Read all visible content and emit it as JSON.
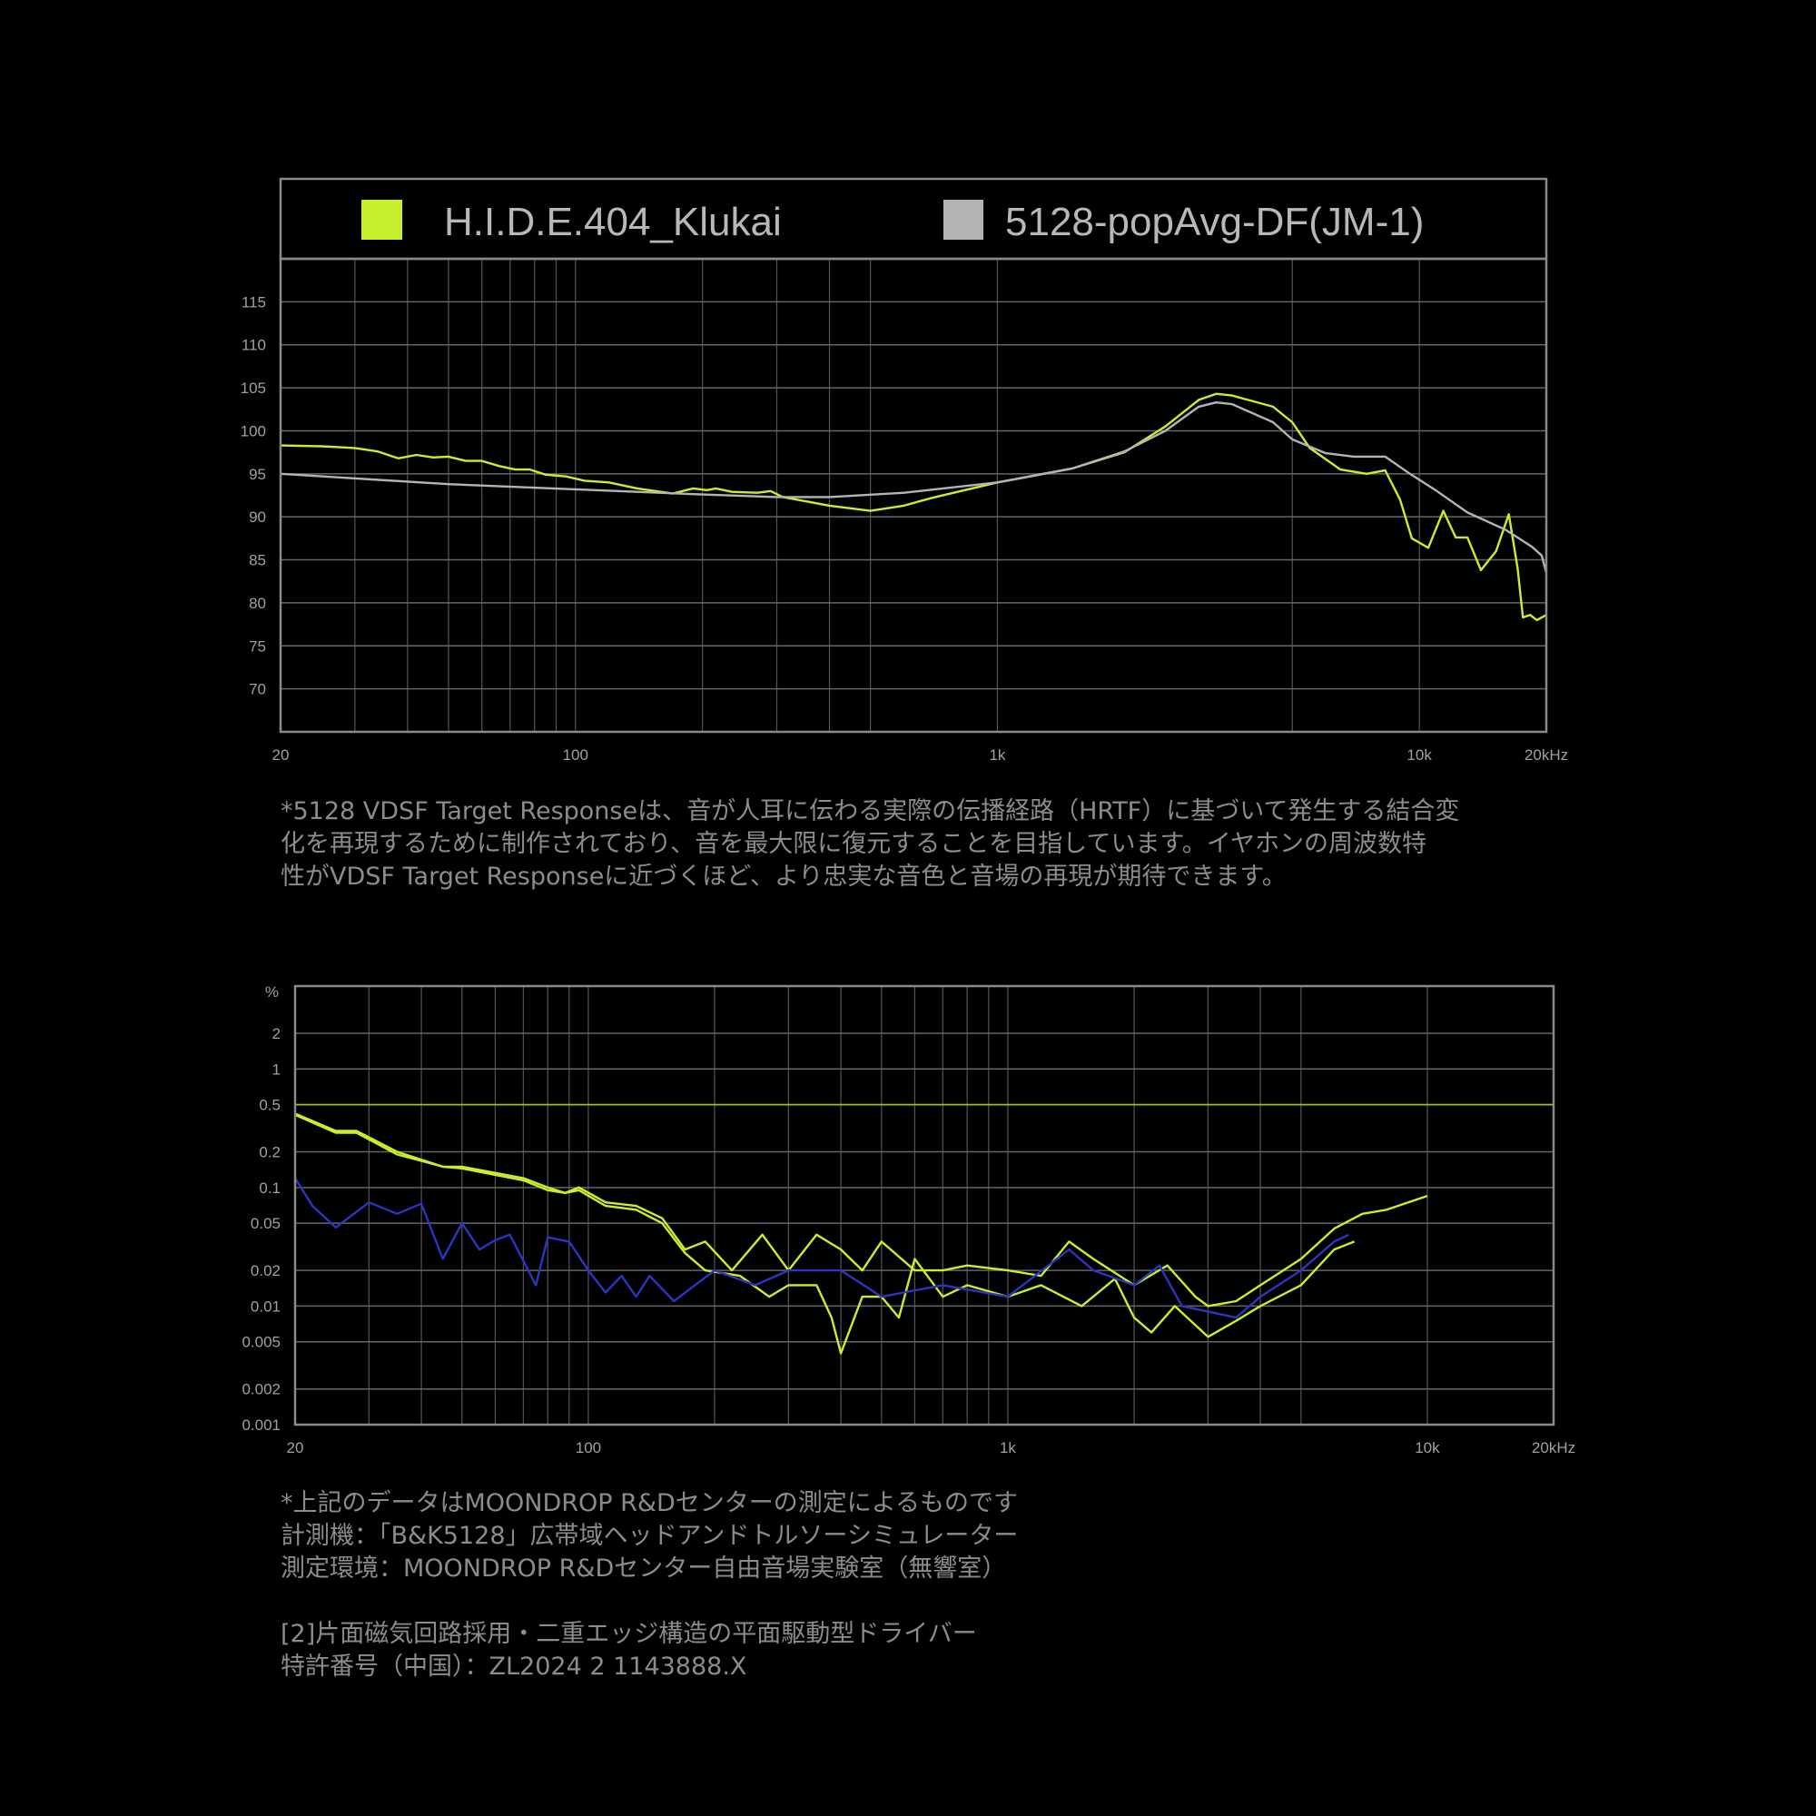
{
  "colors": {
    "background": "#000000",
    "klukai": "#c8ef2c",
    "target": "#b4b4b4",
    "blue": "#2a36c0",
    "grid": "#555555",
    "frame": "#8a8a8a",
    "tick": "#a0a0a0",
    "text": "#8c8c8c",
    "threshold": "#a8c21c"
  },
  "chart_data": [
    {
      "type": "line",
      "legend": {
        "placement": "top",
        "entries": [
          "H.I.D.E.404_Klukai",
          "5128-popAvg-DF(JM-1)"
        ]
      },
      "x_scale": "log",
      "xlim": [
        20,
        20000
      ],
      "ylim": [
        65,
        120
      ],
      "grid": true,
      "x_ticks": [
        {
          "v": 20,
          "label": "20"
        },
        {
          "v": 100,
          "label": "100"
        },
        {
          "v": 1000,
          "label": "1k"
        },
        {
          "v": 10000,
          "label": "10k"
        },
        {
          "v": 20000,
          "label": "20kHz"
        }
      ],
      "x_grid": [
        30,
        40,
        50,
        60,
        70,
        80,
        90,
        100,
        200,
        300,
        400,
        500,
        1000,
        5000,
        10000
      ],
      "y_ticks": [
        70,
        75,
        80,
        85,
        90,
        95,
        100,
        105,
        110,
        115
      ],
      "series": [
        {
          "name": "H.I.D.E.404_Klukai",
          "color": "#c8ef2c",
          "points": [
            [
              20,
              98.3
            ],
            [
              25,
              98.2
            ],
            [
              30,
              98
            ],
            [
              34,
              97.6
            ],
            [
              38,
              96.8
            ],
            [
              42,
              97.2
            ],
            [
              46,
              96.9
            ],
            [
              50,
              97
            ],
            [
              55,
              96.5
            ],
            [
              60,
              96.5
            ],
            [
              66,
              95.9
            ],
            [
              72,
              95.5
            ],
            [
              78,
              95.5
            ],
            [
              85,
              94.9
            ],
            [
              95,
              94.7
            ],
            [
              105,
              94.2
            ],
            [
              120,
              94
            ],
            [
              140,
              93.3
            ],
            [
              170,
              92.7
            ],
            [
              190,
              93.3
            ],
            [
              205,
              93.1
            ],
            [
              215,
              93.3
            ],
            [
              235,
              92.9
            ],
            [
              270,
              92.8
            ],
            [
              290,
              93
            ],
            [
              310,
              92.3
            ],
            [
              400,
              91.3
            ],
            [
              500,
              90.7
            ],
            [
              600,
              91.3
            ],
            [
              700,
              92.2
            ],
            [
              1000,
              94
            ],
            [
              1500,
              95.6
            ],
            [
              2000,
              97.5
            ],
            [
              2500,
              100.5
            ],
            [
              3000,
              103.6
            ],
            [
              3300,
              104.3
            ],
            [
              3600,
              104.1
            ],
            [
              4500,
              102.8
            ],
            [
              5000,
              101
            ],
            [
              5500,
              98
            ],
            [
              6500,
              95.5
            ],
            [
              7500,
              95
            ],
            [
              8300,
              95.4
            ],
            [
              9000,
              92
            ],
            [
              9600,
              87.5
            ],
            [
              10500,
              86.4
            ],
            [
              11400,
              90.7
            ],
            [
              12200,
              87.6
            ],
            [
              13000,
              87.6
            ],
            [
              14000,
              83.8
            ],
            [
              15200,
              86
            ],
            [
              16300,
              90.3
            ],
            [
              17100,
              84
            ],
            [
              17600,
              78.3
            ],
            [
              18300,
              78.6
            ],
            [
              19000,
              78
            ],
            [
              20000,
              78.6
            ]
          ]
        },
        {
          "name": "5128-popAvg-DF(JM-1)",
          "color": "#b4b4b4",
          "points": [
            [
              20,
              95
            ],
            [
              50,
              93.8
            ],
            [
              100,
              93.2
            ],
            [
              200,
              92.6
            ],
            [
              300,
              92.3
            ],
            [
              400,
              92.3
            ],
            [
              600,
              92.8
            ],
            [
              1000,
              94
            ],
            [
              1500,
              95.6
            ],
            [
              2000,
              97.6
            ],
            [
              2500,
              100
            ],
            [
              3000,
              102.8
            ],
            [
              3300,
              103.3
            ],
            [
              3600,
              103.1
            ],
            [
              4500,
              101
            ],
            [
              5000,
              99
            ],
            [
              6000,
              97.4
            ],
            [
              7000,
              97
            ],
            [
              8300,
              97
            ],
            [
              9500,
              95
            ],
            [
              11000,
              93
            ],
            [
              13000,
              90.5
            ],
            [
              16000,
              88.5
            ],
            [
              18500,
              86.5
            ],
            [
              19500,
              85.5
            ],
            [
              20000,
              83.5
            ]
          ]
        }
      ]
    },
    {
      "type": "line",
      "y_unit": "%",
      "x_scale": "log",
      "y_scale": "log",
      "xlim": [
        20,
        20000
      ],
      "ylim": [
        0.001,
        5
      ],
      "grid": true,
      "x_ticks": [
        {
          "v": 20,
          "label": "20"
        },
        {
          "v": 100,
          "label": "100"
        },
        {
          "v": 1000,
          "label": "1k"
        },
        {
          "v": 10000,
          "label": "10k"
        },
        {
          "v": 20000,
          "label": "20kHz"
        }
      ],
      "x_grid": [
        30,
        40,
        50,
        60,
        70,
        80,
        90,
        100,
        200,
        300,
        400,
        500,
        600,
        700,
        800,
        900,
        1000,
        2000,
        3000,
        4000,
        5000,
        10000
      ],
      "y_ticks": [
        {
          "v": 2,
          "label": "2"
        },
        {
          "v": 1,
          "label": "1"
        },
        {
          "v": 0.5,
          "label": "0.5"
        },
        {
          "v": 0.2,
          "label": "0.2"
        },
        {
          "v": 0.1,
          "label": "0.1"
        },
        {
          "v": 0.05,
          "label": "0.05"
        },
        {
          "v": 0.02,
          "label": "0.02"
        },
        {
          "v": 0.01,
          "label": "0.01"
        },
        {
          "v": 0.005,
          "label": "0.005"
        },
        {
          "v": 0.002,
          "label": "0.002"
        },
        {
          "v": 0.001,
          "label": "0.001"
        }
      ],
      "reference_line": {
        "value": 0.5,
        "color": "#a8c21c"
      },
      "series": [
        {
          "color": "#c8ef2c",
          "points": [
            [
              20,
              0.42
            ],
            [
              25,
              0.3
            ],
            [
              28,
              0.3
            ],
            [
              35,
              0.2
            ],
            [
              45,
              0.15
            ],
            [
              50,
              0.15
            ],
            [
              70,
              0.12
            ],
            [
              80,
              0.1
            ],
            [
              88,
              0.09
            ],
            [
              95,
              0.1
            ],
            [
              110,
              0.075
            ],
            [
              130,
              0.07
            ],
            [
              150,
              0.055
            ],
            [
              170,
              0.03
            ],
            [
              190,
              0.035
            ],
            [
              220,
              0.02
            ],
            [
              260,
              0.04
            ],
            [
              300,
              0.02
            ],
            [
              350,
              0.04
            ],
            [
              400,
              0.03
            ],
            [
              450,
              0.02
            ],
            [
              500,
              0.035
            ],
            [
              600,
              0.02
            ],
            [
              700,
              0.02
            ],
            [
              800,
              0.022
            ],
            [
              1000,
              0.02
            ],
            [
              1200,
              0.018
            ],
            [
              1400,
              0.035
            ],
            [
              1600,
              0.025
            ],
            [
              2000,
              0.015
            ],
            [
              2400,
              0.022
            ],
            [
              2800,
              0.012
            ],
            [
              3000,
              0.01
            ],
            [
              3500,
              0.011
            ],
            [
              4000,
              0.015
            ],
            [
              5000,
              0.025
            ],
            [
              6000,
              0.045
            ],
            [
              7000,
              0.06
            ],
            [
              8000,
              0.065
            ],
            [
              9000,
              0.075
            ],
            [
              10000,
              0.085
            ]
          ]
        },
        {
          "color": "#c8ef2c",
          "points": [
            [
              20,
              0.41
            ],
            [
              25,
              0.29
            ],
            [
              28,
              0.29
            ],
            [
              35,
              0.19
            ],
            [
              45,
              0.15
            ],
            [
              50,
              0.145
            ],
            [
              70,
              0.115
            ],
            [
              80,
              0.095
            ],
            [
              88,
              0.09
            ],
            [
              95,
              0.095
            ],
            [
              110,
              0.07
            ],
            [
              130,
              0.065
            ],
            [
              150,
              0.05
            ],
            [
              170,
              0.028
            ],
            [
              190,
              0.02
            ],
            [
              230,
              0.018
            ],
            [
              270,
              0.012
            ],
            [
              300,
              0.015
            ],
            [
              350,
              0.015
            ],
            [
              380,
              0.008
            ],
            [
              400,
              0.004
            ],
            [
              450,
              0.012
            ],
            [
              500,
              0.012
            ],
            [
              550,
              0.008
            ],
            [
              600,
              0.025
            ],
            [
              700,
              0.012
            ],
            [
              800,
              0.015
            ],
            [
              1000,
              0.012
            ],
            [
              1200,
              0.015
            ],
            [
              1500,
              0.01
            ],
            [
              1800,
              0.017
            ],
            [
              2000,
              0.008
            ],
            [
              2200,
              0.006
            ],
            [
              2500,
              0.01
            ],
            [
              3000,
              0.0055
            ],
            [
              3500,
              0.0075
            ],
            [
              4000,
              0.01
            ],
            [
              5000,
              0.015
            ],
            [
              6000,
              0.03
            ],
            [
              6700,
              0.035
            ]
          ]
        },
        {
          "color": "#2a36c0",
          "points": [
            [
              20,
              0.12
            ],
            [
              22,
              0.07
            ],
            [
              25,
              0.046
            ],
            [
              30,
              0.075
            ],
            [
              35,
              0.06
            ],
            [
              40,
              0.073
            ],
            [
              45,
              0.025
            ],
            [
              50,
              0.05
            ],
            [
              55,
              0.03
            ],
            [
              60,
              0.036
            ],
            [
              65,
              0.04
            ],
            [
              75,
              0.015
            ],
            [
              80,
              0.038
            ],
            [
              90,
              0.035
            ],
            [
              100,
              0.02
            ],
            [
              110,
              0.013
            ],
            [
              120,
              0.018
            ],
            [
              130,
              0.012
            ],
            [
              140,
              0.018
            ],
            [
              160,
              0.011
            ],
            [
              200,
              0.02
            ],
            [
              250,
              0.015
            ],
            [
              300,
              0.02
            ],
            [
              400,
              0.02
            ],
            [
              500,
              0.012
            ],
            [
              700,
              0.015
            ],
            [
              1000,
              0.012
            ],
            [
              1400,
              0.03
            ],
            [
              1600,
              0.02
            ],
            [
              2000,
              0.015
            ],
            [
              2300,
              0.022
            ],
            [
              2600,
              0.01
            ],
            [
              3000,
              0.009
            ],
            [
              3500,
              0.008
            ],
            [
              4000,
              0.012
            ],
            [
              5000,
              0.02
            ],
            [
              6000,
              0.035
            ],
            [
              6500,
              0.04
            ]
          ]
        }
      ]
    }
  ],
  "description_lines": [
    "*5128 VDSF Target Responseは、音が人耳に伝わる実際の伝播経路（HRTF）に基づいて発生する結合変",
    "化を再現するために制作されており、音を最大限に復元することを目指しています。イヤホンの周波数特",
    "性がVDSF Target Responseに近づくほど、より忠実な音色と音場の再現が期待できます。"
  ],
  "notes_lines": [
    "*上記のデータはMOONDROP R&Dセンターの測定によるものです",
    "計測機：「B&K5128」広帯域ヘッドアンドトルソーシミュレーター",
    "測定環境：MOONDROP R&Dセンター自由音場実験室（無響室）",
    "",
    "[2]片面磁気回路採用・二重エッジ構造の平面駆動型ドライバー",
    "特許番号（中国）：ZL2024 2 1143888.X"
  ]
}
